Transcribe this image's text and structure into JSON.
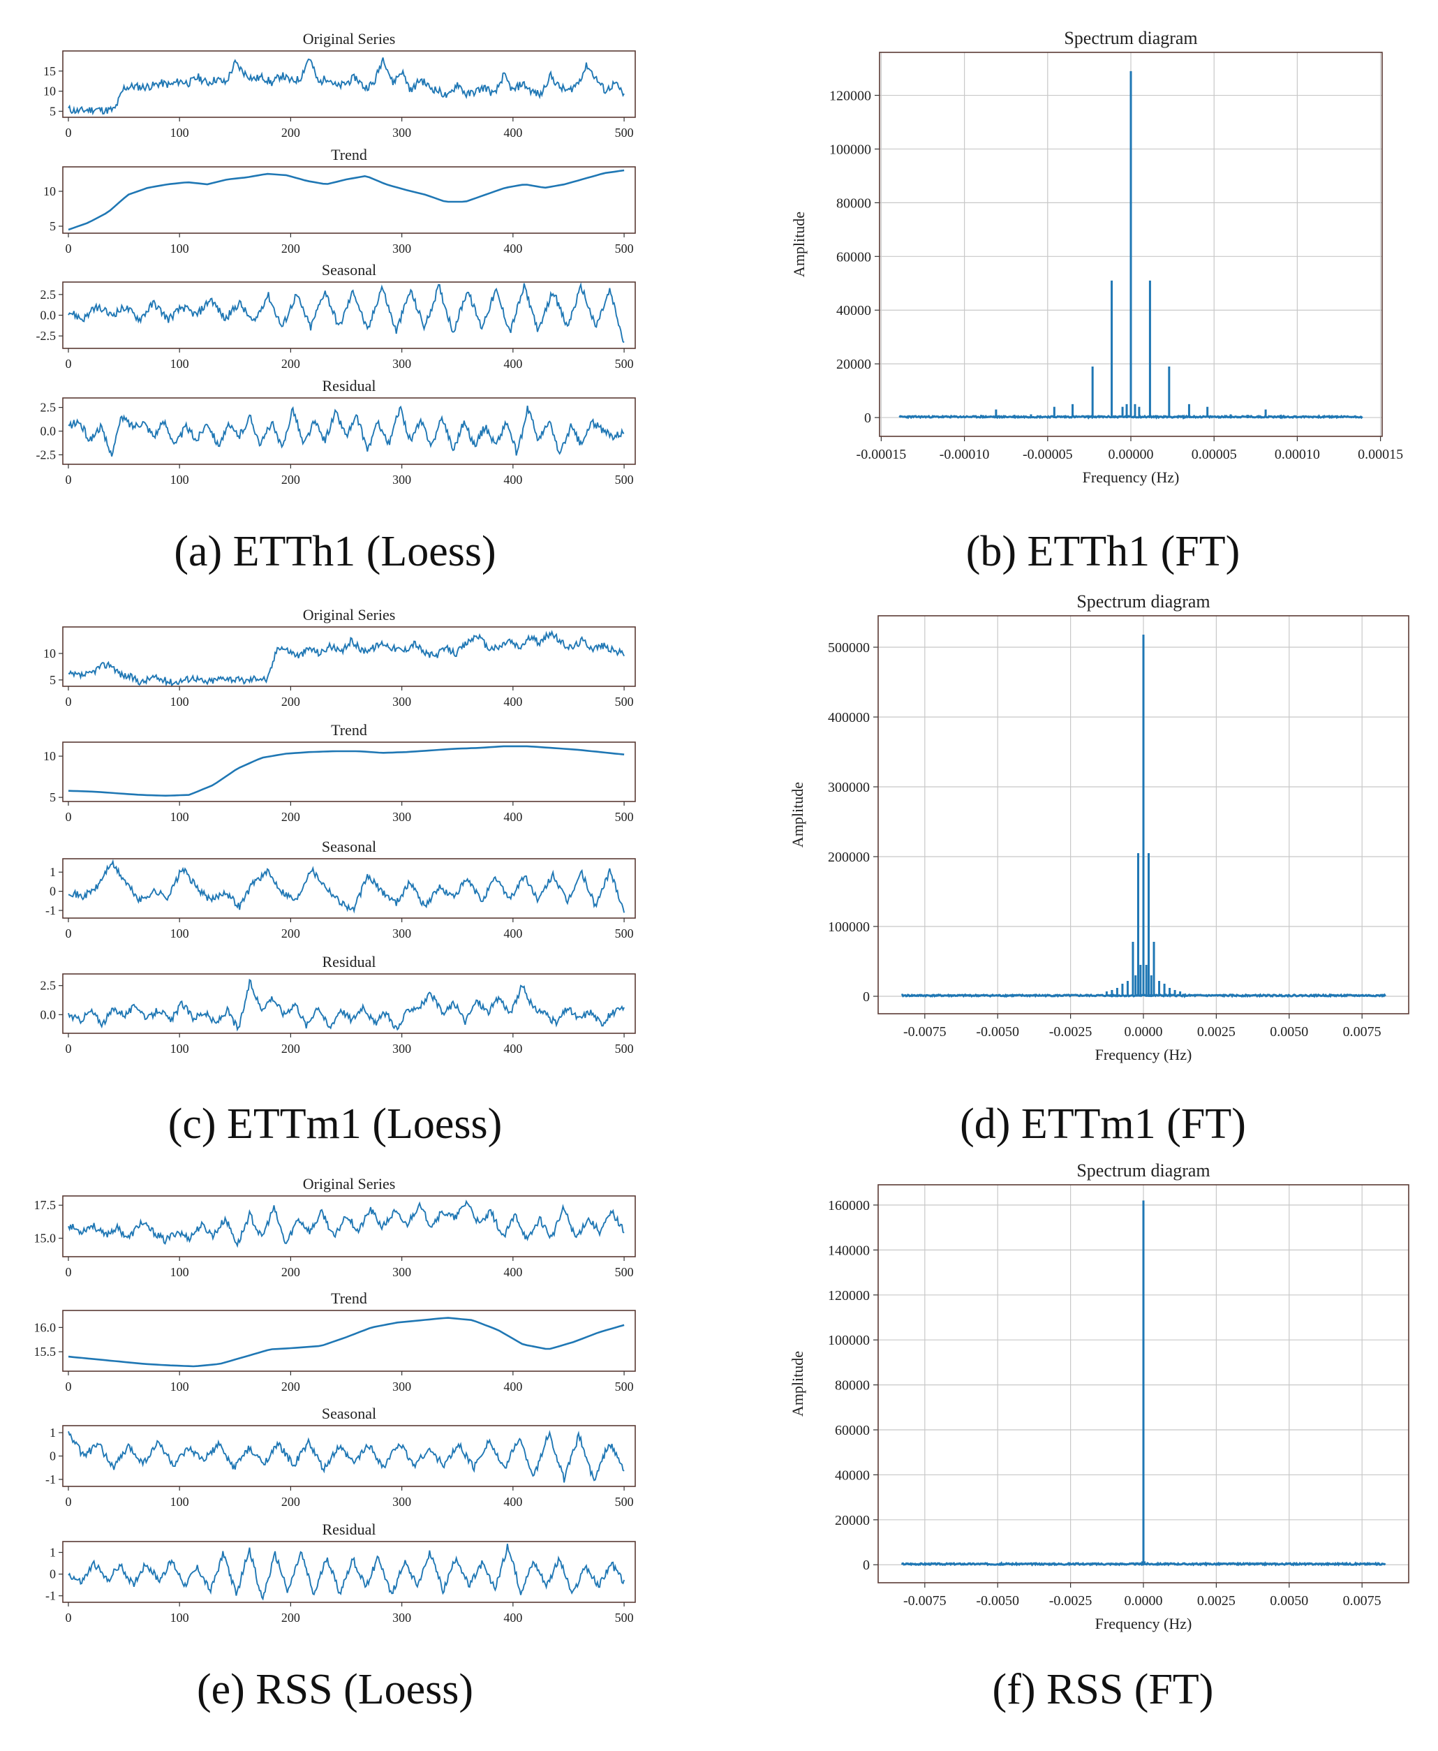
{
  "figure": {
    "captions": [
      "(a) ETTh1 (Loess)",
      "(b) ETTh1 (FT)",
      "(c) ETTm1 (Loess)",
      "(d) ETTm1 (FT)",
      "(e) RSS (Loess)",
      "(f) RSS (FT)"
    ],
    "series_color": "#1f77b4",
    "frame_color": "#5a3a34",
    "grid_color": "#c8c8c8"
  },
  "chart_data": [
    {
      "id": "ETTh1-loess",
      "type": "line",
      "x_ticks": [
        "0",
        "100",
        "200",
        "300",
        "400",
        "500"
      ],
      "xlim": [
        -5,
        510
      ],
      "panels": [
        {
          "title": "Original Series",
          "yticks": [
            "5",
            "10",
            "15"
          ],
          "ytick_values": [
            5,
            10,
            15
          ],
          "ylim": [
            3.5,
            20
          ],
          "y_approx": [
            5.5,
            5,
            5.3,
            5.5,
            5.2,
            5.4,
            10.8,
            11.2,
            11,
            11.3,
            12,
            11.5,
            12.5,
            12,
            13.5,
            12,
            13,
            12,
            17,
            14.5,
            13,
            13.5,
            12,
            14,
            12.5,
            13,
            18.5,
            12,
            13.5,
            11,
            12,
            13.5,
            10.8,
            12,
            18.5,
            12,
            15,
            10,
            13,
            11,
            10,
            8.5,
            12,
            9,
            10,
            11,
            9,
            14,
            10,
            12,
            10,
            9,
            14,
            11,
            10,
            12,
            16.5,
            13,
            10,
            12,
            9
          ]
        },
        {
          "title": "Trend",
          "yticks": [
            "5",
            "10"
          ],
          "ytick_values": [
            5,
            10
          ],
          "ylim": [
            4,
            13.5
          ],
          "y_approx": [
            4.5,
            5.5,
            7,
            9.5,
            10.5,
            11,
            11.3,
            11,
            11.7,
            12,
            12.5,
            12.3,
            11.5,
            11,
            11.7,
            12.2,
            11,
            10.2,
            9.5,
            8.5,
            8.5,
            9.5,
            10.5,
            11,
            10.5,
            11,
            11.8,
            12.6,
            13
          ]
        },
        {
          "title": "Seasonal",
          "yticks": [
            "2.5",
            "0.0",
            "-2.5"
          ],
          "ytick_values": [
            2.5,
            0,
            -2.5
          ],
          "ylim": [
            -4,
            4
          ],
          "y_approx": [
            0.5,
            -0.5,
            1,
            0,
            1,
            -0.5,
            1.5,
            -0.5,
            1,
            0,
            2,
            -0.5,
            1.5,
            -1,
            2.5,
            -1.5,
            2.5,
            -1.5,
            3,
            -1.5,
            3,
            -2,
            3.5,
            -2,
            3,
            -1.5,
            3.5,
            -2,
            3,
            -1.5,
            3,
            -2,
            3.5,
            -2,
            3,
            -1.5,
            3.5,
            -1.5,
            3,
            -3.5
          ]
        },
        {
          "title": "Residual",
          "yticks": [
            "2.5",
            "0.0",
            "-2.5"
          ],
          "ytick_values": [
            2.5,
            0,
            -2.5
          ],
          "ylim": [
            -3.5,
            3.5
          ],
          "y_approx": [
            0.5,
            1,
            -1,
            0.5,
            -2.5,
            1.5,
            0.5,
            1,
            -0.5,
            1,
            -1.5,
            0.5,
            -1,
            1,
            -1.5,
            0.5,
            -0.5,
            1.5,
            -1.5,
            1,
            -2,
            2.5,
            -1.5,
            1,
            -1,
            2,
            -0.5,
            1.5,
            -2,
            1,
            -1.5,
            2.5,
            -1,
            1,
            -1.5,
            1.5,
            -2,
            1,
            -1.5,
            0.5,
            -1.5,
            1,
            -2.5,
            2.5,
            -1,
            1,
            -2.5,
            0.5,
            -1.5,
            1,
            0,
            -0.5,
            0
          ]
        }
      ]
    },
    {
      "id": "ETTh1-ft",
      "type": "line",
      "title": "Spectrum diagram",
      "xlabel": "Frequency (Hz)",
      "ylabel": "Amplitude",
      "x_ticks": [
        "-0.00015",
        "-0.00010",
        "-0.00005",
        "0.00000",
        "0.00005",
        "0.00010",
        "0.00015"
      ],
      "x_tick_values": [
        -0.00015,
        -0.0001,
        -5e-05,
        0,
        5e-05,
        0.0001,
        0.00015
      ],
      "y_ticks": [
        "0",
        "20000",
        "40000",
        "60000",
        "80000",
        "100000",
        "120000"
      ],
      "y_tick_values": [
        0,
        20000,
        40000,
        60000,
        80000,
        100000,
        120000
      ],
      "xlim": [
        -0.000151,
        0.000151
      ],
      "ylim": [
        -7000,
        136000
      ],
      "data_xlim": [
        -0.000139,
        0.000139
      ],
      "grid": true,
      "spikes": [
        {
          "x": 0,
          "y": 129000
        },
        {
          "x": -1.15e-05,
          "y": 51000
        },
        {
          "x": 1.15e-05,
          "y": 51000
        },
        {
          "x": -2.3e-05,
          "y": 19000
        },
        {
          "x": 2.3e-05,
          "y": 19000
        },
        {
          "x": -3.5e-05,
          "y": 5000
        },
        {
          "x": 3.5e-05,
          "y": 5000
        },
        {
          "x": -4.6e-05,
          "y": 4000
        },
        {
          "x": 4.6e-05,
          "y": 4000
        },
        {
          "x": -8.1e-05,
          "y": 3000
        },
        {
          "x": 8.1e-05,
          "y": 3000
        },
        {
          "x": -6e-05,
          "y": 1200
        },
        {
          "x": 6e-05,
          "y": 1200
        },
        {
          "x": -7e-05,
          "y": 1000
        },
        {
          "x": 7e-05,
          "y": 1000
        },
        {
          "x": -9e-05,
          "y": 1000
        },
        {
          "x": 9e-05,
          "y": 1000
        },
        {
          "x": -5e-06,
          "y": 4000
        },
        {
          "x": 5e-06,
          "y": 4000
        },
        {
          "x": -2.5e-06,
          "y": 5000
        },
        {
          "x": 2.5e-06,
          "y": 5000
        }
      ]
    },
    {
      "id": "ETTm1-loess",
      "type": "line",
      "x_ticks": [
        "0",
        "100",
        "200",
        "300",
        "400",
        "500"
      ],
      "xlim": [
        -5,
        510
      ],
      "panels": [
        {
          "title": "Original Series",
          "yticks": [
            "5",
            "10"
          ],
          "ytick_values": [
            5,
            10
          ],
          "ylim": [
            3.8,
            15
          ],
          "y_approx": [
            6,
            5.8,
            6,
            7.5,
            8,
            6,
            5.5,
            4.5,
            5.5,
            5,
            4.5,
            5,
            5.5,
            4.5,
            5,
            5.5,
            5,
            4.8,
            5.5,
            5,
            11.5,
            10.5,
            9.5,
            11,
            10,
            11.5,
            10,
            12.5,
            10.5,
            11,
            12,
            11,
            10.5,
            12,
            10,
            9.5,
            11,
            10,
            12,
            13.5,
            11,
            11,
            12.5,
            11,
            13,
            12,
            14,
            12,
            11,
            12.5,
            11,
            11.5,
            10.5,
            10
          ]
        },
        {
          "title": "Trend",
          "yticks": [
            "5",
            "10"
          ],
          "ytick_values": [
            5,
            10
          ],
          "ylim": [
            4.5,
            11.7
          ],
          "y_approx": [
            5.8,
            5.7,
            5.5,
            5.3,
            5.2,
            5.3,
            6.5,
            8.5,
            9.8,
            10.3,
            10.5,
            10.6,
            10.6,
            10.4,
            10.5,
            10.7,
            10.9,
            11,
            11.2,
            11.2,
            11,
            10.8,
            10.5,
            10.2
          ]
        },
        {
          "title": "Seasonal",
          "yticks": [
            "1",
            "0",
            "-1"
          ],
          "ytick_values": [
            1,
            0,
            -1
          ],
          "ylim": [
            -1.4,
            1.7
          ],
          "y_approx": [
            0,
            -0.3,
            0.2,
            1.5,
            0.5,
            -0.5,
            0,
            -0.3,
            1.2,
            0.2,
            -0.5,
            0,
            -0.8,
            0.5,
            1,
            0,
            -0.5,
            1.2,
            0.3,
            -0.5,
            -1,
            0.8,
            0,
            -0.6,
            0.5,
            -0.8,
            0.2,
            -0.3,
            0.6,
            -0.5,
            0.7,
            -0.4,
            0.8,
            -0.5,
            0.9,
            -0.6,
            1,
            -0.8,
            1.1,
            -1
          ]
        },
        {
          "title": "Residual",
          "yticks": [
            "2.5",
            "0.0"
          ],
          "ytick_values": [
            2.5,
            0
          ],
          "ylim": [
            -1.6,
            3.5
          ],
          "y_approx": [
            0,
            -0.5,
            0.3,
            -0.8,
            0.5,
            0,
            0.8,
            -0.4,
            0.5,
            -0.6,
            1,
            -0.3,
            0.2,
            -0.8,
            0.4,
            -1.3,
            2.8,
            0.5,
            1.5,
            0,
            1,
            -1,
            0.8,
            -1.2,
            0.5,
            -0.5,
            0.8,
            -0.8,
            0.2,
            -1.3,
            0.5,
            0.7,
            1.8,
            0,
            1,
            -0.6,
            1.2,
            0.2,
            1.5,
            0,
            2.5,
            0.5,
            0.2,
            -0.8,
            0.6,
            -0.4,
            0.3,
            -0.8,
            0.2,
            0.5
          ]
        }
      ]
    },
    {
      "id": "ETTm1-ft",
      "type": "line",
      "title": "Spectrum diagram",
      "xlabel": "Frequency (Hz)",
      "ylabel": "Amplitude",
      "x_ticks": [
        "-0.0075",
        "-0.0050",
        "-0.0025",
        "0.0000",
        "0.0025",
        "0.0050",
        "0.0075"
      ],
      "x_tick_values": [
        -0.0075,
        -0.005,
        -0.0025,
        0,
        0.0025,
        0.005,
        0.0075
      ],
      "y_ticks": [
        "0",
        "100000",
        "200000",
        "300000",
        "400000",
        "500000"
      ],
      "y_tick_values": [
        0,
        100000,
        200000,
        300000,
        400000,
        500000
      ],
      "xlim": [
        -0.0091,
        0.0091
      ],
      "ylim": [
        -25000,
        545000
      ],
      "data_xlim": [
        -0.0083,
        0.0083
      ],
      "grid": true,
      "spikes": [
        {
          "x": 0,
          "y": 518000
        },
        {
          "x": -0.00018,
          "y": 205000
        },
        {
          "x": 0.00018,
          "y": 205000
        },
        {
          "x": -0.00036,
          "y": 78000
        },
        {
          "x": 0.00036,
          "y": 78000
        },
        {
          "x": -0.00054,
          "y": 22000
        },
        {
          "x": 0.00054,
          "y": 22000
        },
        {
          "x": -0.00072,
          "y": 18000
        },
        {
          "x": 0.00072,
          "y": 18000
        },
        {
          "x": -0.0009,
          "y": 12000
        },
        {
          "x": 0.0009,
          "y": 12000
        },
        {
          "x": -0.00108,
          "y": 9000
        },
        {
          "x": 0.00108,
          "y": 9000
        },
        {
          "x": -0.00126,
          "y": 7000
        },
        {
          "x": 0.00126,
          "y": 7000
        },
        {
          "x": -0.0001,
          "y": 45000
        },
        {
          "x": 0.0001,
          "y": 45000
        },
        {
          "x": -0.00027,
          "y": 30000
        },
        {
          "x": 0.00027,
          "y": 30000
        }
      ]
    },
    {
      "id": "RSS-loess",
      "type": "line",
      "x_ticks": [
        "0",
        "100",
        "200",
        "300",
        "400",
        "500"
      ],
      "xlim": [
        -5,
        510
      ],
      "panels": [
        {
          "title": "Original Series",
          "yticks": [
            "17.5",
            "15.0"
          ],
          "ytick_values": [
            17.5,
            15
          ],
          "ylim": [
            13.6,
            18.2
          ],
          "y_approx": [
            16,
            15.5,
            16,
            15.2,
            15.8,
            15,
            16.2,
            15.5,
            14.8,
            15.5,
            15,
            16,
            15.2,
            16.5,
            14.5,
            16.8,
            15,
            17.3,
            14.5,
            16.5,
            15.5,
            17,
            15,
            16.8,
            15.5,
            17.2,
            15.8,
            17,
            16,
            17.5,
            16,
            17,
            16.5,
            17.8,
            16,
            17,
            15,
            16.8,
            14.8,
            16.5,
            15,
            17.3,
            15,
            16.5,
            15.5,
            17,
            15.5
          ]
        },
        {
          "title": "Trend",
          "yticks": [
            "16.0",
            "15.5"
          ],
          "ytick_values": [
            16,
            15.5
          ],
          "ylim": [
            15.1,
            16.35
          ],
          "y_approx": [
            15.4,
            15.35,
            15.3,
            15.25,
            15.22,
            15.2,
            15.25,
            15.4,
            15.55,
            15.58,
            15.62,
            15.8,
            16.0,
            16.1,
            16.15,
            16.2,
            16.15,
            15.95,
            15.65,
            15.55,
            15.7,
            15.9,
            16.05
          ]
        },
        {
          "title": "Seasonal",
          "yticks": [
            "1",
            "0",
            "-1"
          ],
          "ytick_values": [
            1,
            0,
            -1
          ],
          "ylim": [
            -1.3,
            1.3
          ],
          "y_approx": [
            1,
            0,
            0.5,
            -0.5,
            0.4,
            -0.3,
            0.6,
            -0.4,
            0.3,
            -0.2,
            0.5,
            -0.5,
            0.3,
            -0.3,
            0.5,
            -0.4,
            0.6,
            -0.6,
            0.4,
            -0.3,
            0.5,
            -0.5,
            0.6,
            -0.4,
            0.3,
            -0.4,
            0.5,
            -0.5,
            0.7,
            -0.6,
            0.8,
            -0.9,
            1,
            -1,
            0.9,
            -1.1,
            0.6,
            -0.6
          ]
        },
        {
          "title": "Residual",
          "yticks": [
            "1",
            "0",
            "-1"
          ],
          "ytick_values": [
            1,
            0,
            -1
          ],
          "ylim": [
            -1.3,
            1.5
          ],
          "y_approx": [
            0,
            -0.4,
            0.5,
            -0.3,
            0.4,
            -0.5,
            0.5,
            -0.3,
            0.6,
            -0.5,
            0.3,
            -0.8,
            1,
            -1,
            1.2,
            -1.2,
            0.9,
            -0.8,
            1,
            -1,
            0.8,
            -0.9,
            0.7,
            -0.6,
            0.8,
            -1,
            0.6,
            -0.5,
            1,
            -0.8,
            0.8,
            -0.6,
            0.5,
            -0.7,
            1.3,
            -0.8,
            0.6,
            -0.5,
            0.7,
            -1,
            0.4,
            -0.6,
            0.5,
            -0.4
          ]
        }
      ]
    },
    {
      "id": "RSS-ft",
      "type": "line",
      "title": "Spectrum diagram",
      "xlabel": "Frequency (Hz)",
      "ylabel": "Amplitude",
      "x_ticks": [
        "-0.0075",
        "-0.0050",
        "-0.0025",
        "0.0000",
        "0.0025",
        "0.0050",
        "0.0075"
      ],
      "x_tick_values": [
        -0.0075,
        -0.005,
        -0.0025,
        0,
        0.0025,
        0.005,
        0.0075
      ],
      "y_ticks": [
        "0",
        "20000",
        "40000",
        "60000",
        "80000",
        "100000",
        "120000",
        "140000",
        "160000"
      ],
      "y_tick_values": [
        0,
        20000,
        40000,
        60000,
        80000,
        100000,
        120000,
        140000,
        160000
      ],
      "xlim": [
        -0.0091,
        0.0091
      ],
      "ylim": [
        -8000,
        169000
      ],
      "data_xlim": [
        -0.0083,
        0.0083
      ],
      "grid": true,
      "spikes": [
        {
          "x": 0,
          "y": 162000
        },
        {
          "x": -4e-05,
          "y": 1500
        },
        {
          "x": 4e-05,
          "y": 1500
        }
      ]
    }
  ]
}
